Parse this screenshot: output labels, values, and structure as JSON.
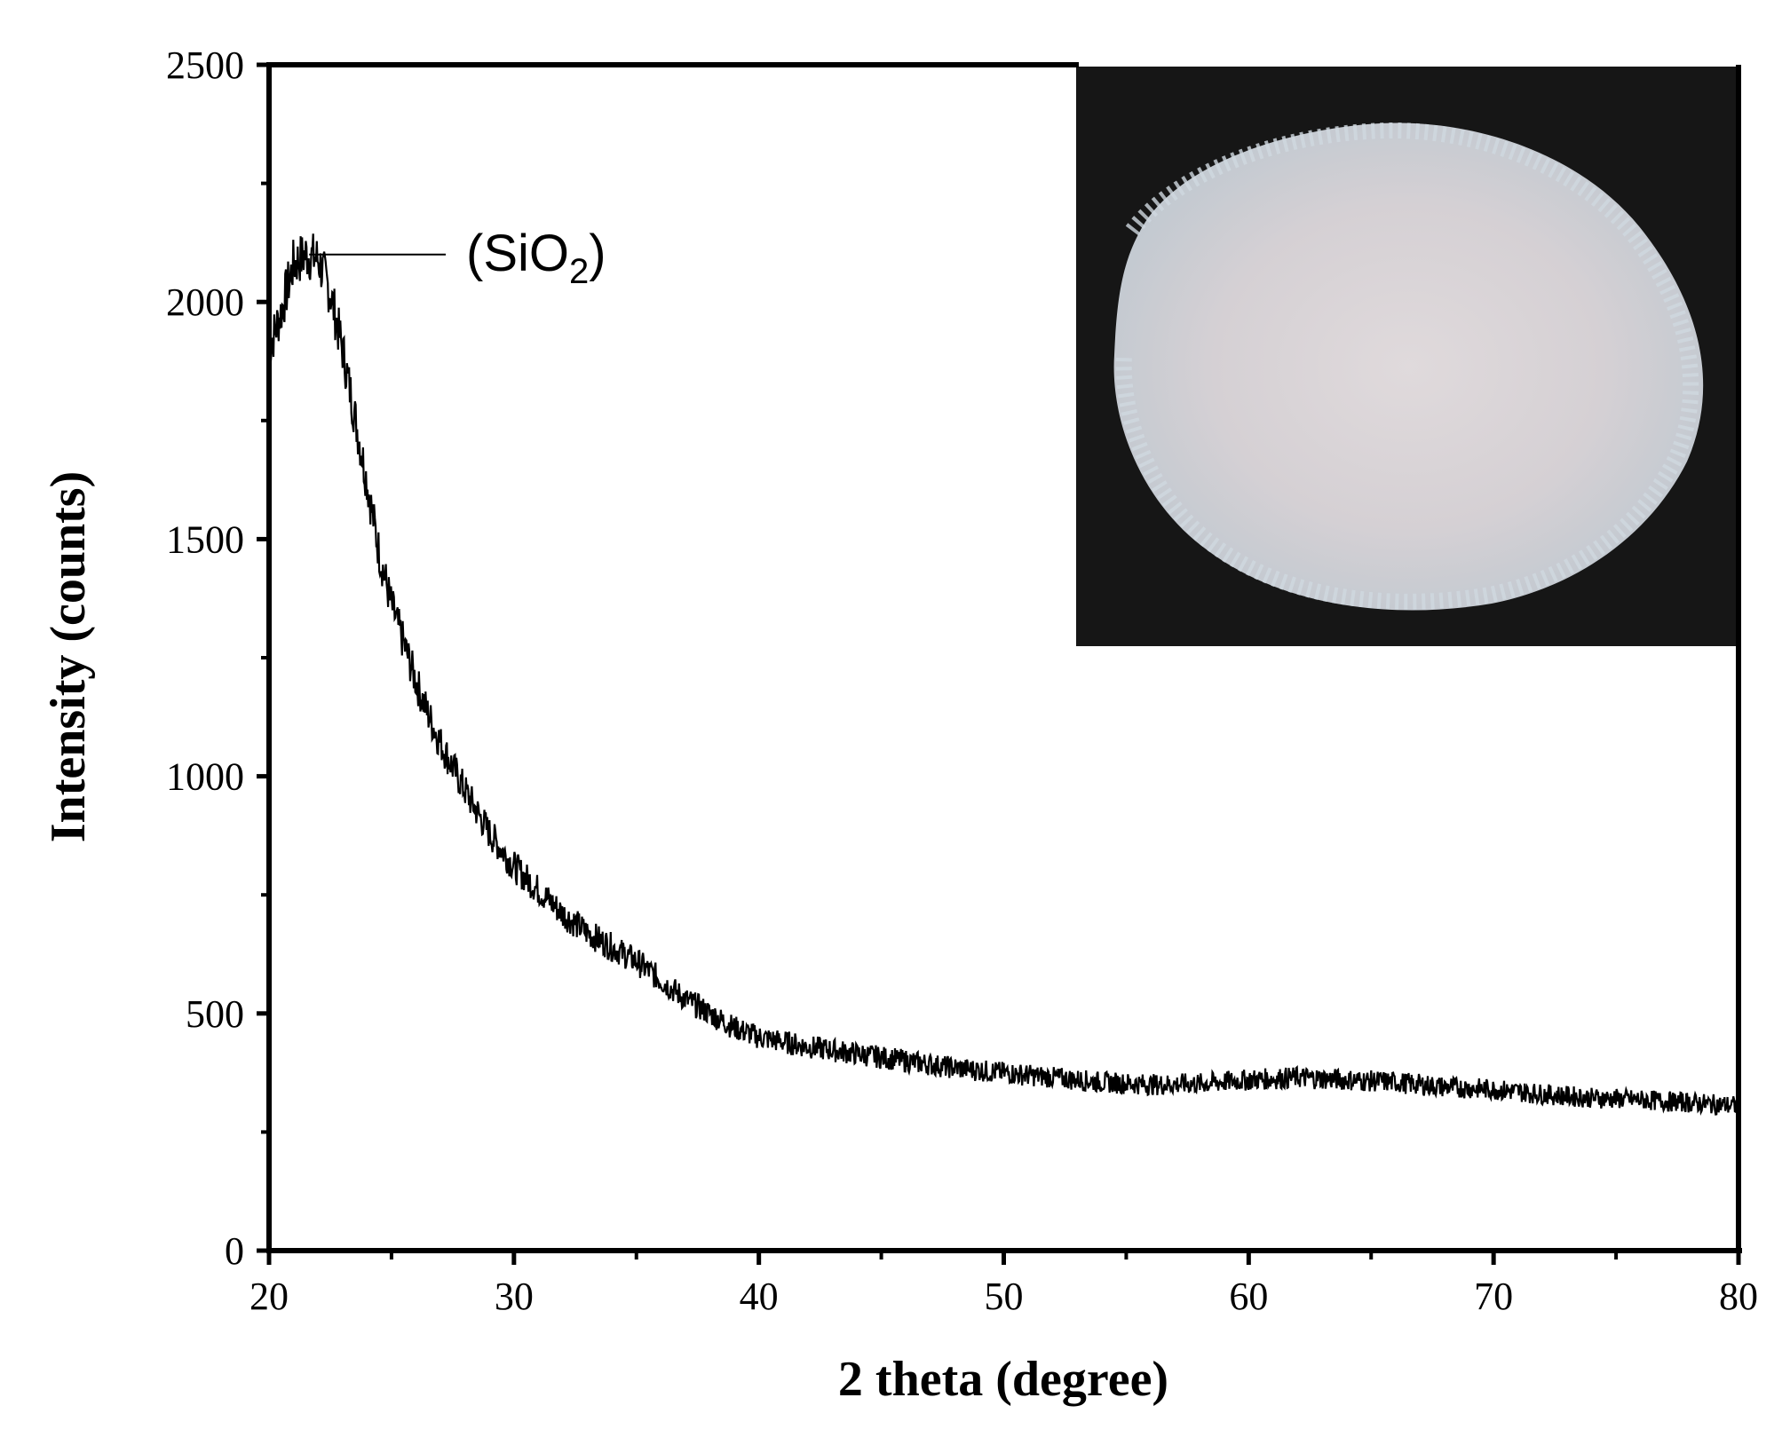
{
  "chart_data": {
    "type": "line",
    "title": "",
    "xlabel": "2 theta (degree)",
    "ylabel": "Intensity (counts)",
    "xlim": [
      20,
      80
    ],
    "ylim": [
      0,
      2500
    ],
    "x_ticks": [
      "20",
      "30",
      "40",
      "50",
      "60",
      "70",
      "80"
    ],
    "y_ticks": [
      "0",
      "500",
      "1000",
      "1500",
      "2000",
      "2500"
    ],
    "grid": false,
    "legend": "none",
    "line_color": "#000000",
    "series": [
      {
        "x": [
          20,
          20.5,
          21,
          21.5,
          22,
          22.5,
          23,
          23.5,
          24,
          24.5,
          25,
          25.5,
          26,
          26.5,
          27,
          28,
          29,
          30,
          31,
          32,
          33,
          34,
          35,
          36,
          37,
          38,
          39,
          40,
          42,
          44,
          46,
          48,
          50,
          52,
          54,
          56,
          58,
          60,
          62,
          64,
          66,
          68,
          70,
          72,
          74,
          76,
          78,
          80
        ],
        "y": [
          1900,
          1980,
          2080,
          2100,
          2090,
          2020,
          1900,
          1760,
          1620,
          1470,
          1360,
          1280,
          1200,
          1130,
          1070,
          970,
          880,
          810,
          760,
          710,
          670,
          640,
          610,
          570,
          530,
          500,
          470,
          450,
          430,
          415,
          400,
          385,
          375,
          365,
          355,
          350,
          352,
          360,
          365,
          360,
          355,
          345,
          340,
          330,
          322,
          318,
          312,
          305
        ]
      }
    ],
    "annotations": [
      {
        "label": "(SiO",
        "subscript": "2",
        "suffix": ")",
        "x": 22,
        "y": 2100
      }
    ],
    "inset": {
      "description_icon": "white-powder-photo-inset"
    }
  }
}
